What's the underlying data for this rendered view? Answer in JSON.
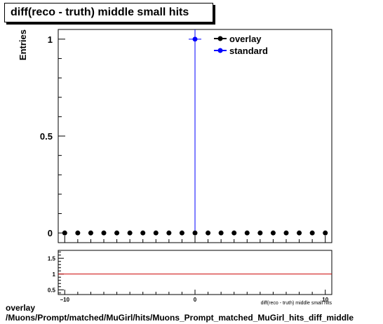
{
  "title": "diff(reco - truth) middle small hits",
  "footer": {
    "line1": "overlay",
    "line2": "/Muons/Prompt/matched/MuGirl/hits/Muons_Prompt_matched_MuGirl_hits_diff_middle"
  },
  "chart_data": [
    {
      "type": "scatter",
      "ylabel": "Entries",
      "xlim": [
        -10.5,
        10.5
      ],
      "ylim": [
        -0.05,
        1.05
      ],
      "x_ticks": [
        -10,
        0,
        10
      ],
      "y_ticks": [
        0,
        0.5,
        1
      ],
      "y_tick_labels": [
        "0",
        "0.5",
        "1"
      ],
      "legend": [
        "overlay",
        "standard"
      ],
      "legend_position": "top-right",
      "series": [
        {
          "name": "overlay",
          "color": "#000000",
          "x": [
            -10,
            -9,
            -8,
            -7,
            -6,
            -5,
            -4,
            -3,
            -2,
            -1,
            0,
            1,
            2,
            3,
            4,
            5,
            6,
            7,
            8,
            9,
            10
          ],
          "y": [
            0,
            0,
            0,
            0,
            0,
            0,
            0,
            0,
            0,
            0,
            0,
            0,
            0,
            0,
            0,
            0,
            0,
            0,
            0,
            0,
            0
          ]
        },
        {
          "name": "standard",
          "color": "#0000ff",
          "x": [
            0
          ],
          "y": [
            1
          ],
          "yerr": [
            1
          ]
        }
      ]
    },
    {
      "type": "line",
      "xlabel": "diff(reco - truth) middle small hits",
      "xlim": [
        -10.5,
        10.5
      ],
      "ylim": [
        0.35,
        1.75
      ],
      "x_ticks": [
        -10,
        0,
        10
      ],
      "y_ticks": [
        0.5,
        1,
        1.5
      ],
      "y_tick_labels": [
        "0.5",
        "1",
        "1.5"
      ],
      "series": [
        {
          "color": "#cc0000",
          "x": [
            -10.5,
            10.5
          ],
          "y": [
            1,
            1
          ]
        }
      ]
    }
  ]
}
